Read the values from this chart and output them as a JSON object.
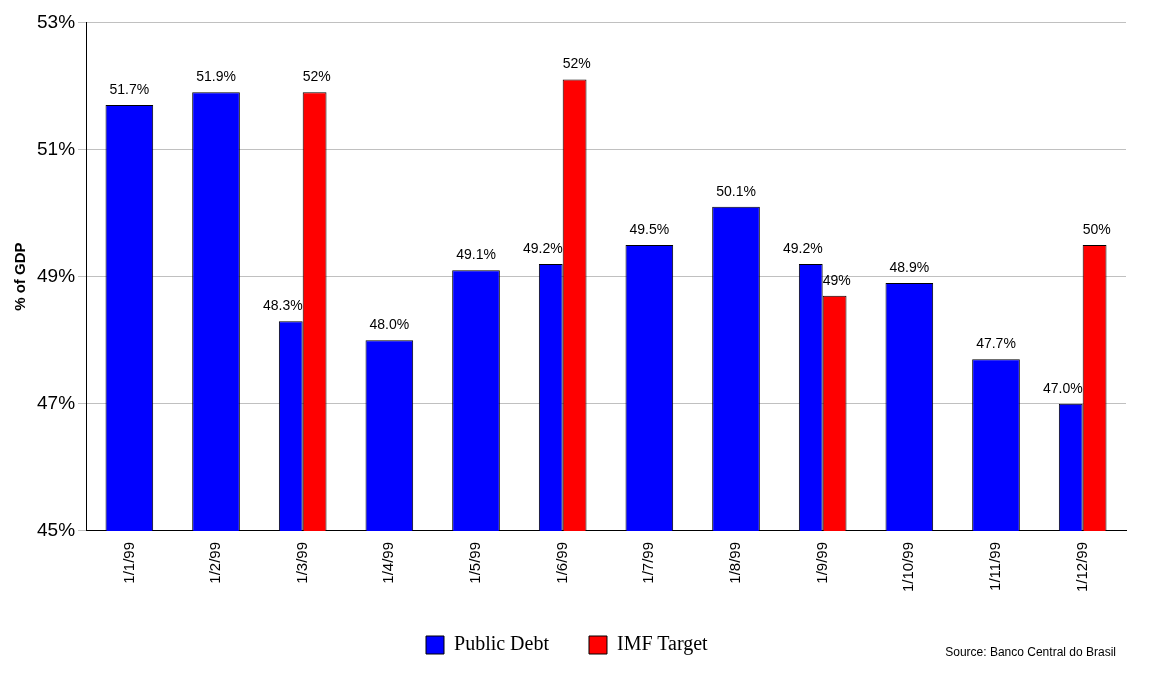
{
  "chart_data": {
    "type": "bar",
    "ylabel": "% of GDP",
    "categories": [
      "1/1/99",
      "1/2/99",
      "1/3/99",
      "1/4/99",
      "1/5/99",
      "1/6/99",
      "1/7/99",
      "1/8/99",
      "1/9/99",
      "1/10/99",
      "1/11/99",
      "1/12/99"
    ],
    "series": [
      {
        "name": "Public Debt",
        "color": "#0000ff",
        "values": [
          51.7,
          51.9,
          48.3,
          48.0,
          49.1,
          49.2,
          49.5,
          50.1,
          49.2,
          48.9,
          47.7,
          47.0
        ],
        "value_labels": [
          "51.7%",
          "51.9%",
          "48.3%",
          "48.0%",
          "49.1%",
          "49.2%",
          "49.5%",
          "50.1%",
          "49.2%",
          "48.9%",
          "47.7%",
          "47.0%"
        ]
      },
      {
        "name": "IMF Target",
        "color": "#ff0000",
        "values": [
          null,
          null,
          51.9,
          null,
          null,
          52.1,
          null,
          null,
          48.7,
          null,
          null,
          49.5
        ],
        "value_labels": [
          null,
          null,
          "52%",
          null,
          null,
          "52%",
          null,
          null,
          "49%",
          null,
          null,
          "50%"
        ]
      }
    ],
    "ylim": [
      45,
      53
    ],
    "yticks": [
      {
        "value": 45,
        "label": "45%"
      },
      {
        "value": 47,
        "label": "47%"
      },
      {
        "value": 49,
        "label": "49%"
      },
      {
        "value": 51,
        "label": "51%"
      },
      {
        "value": 53,
        "label": "53%"
      }
    ],
    "grid": "y",
    "legend": "bottom",
    "annotations": [
      "Source: Banco Central do Brasil"
    ]
  }
}
